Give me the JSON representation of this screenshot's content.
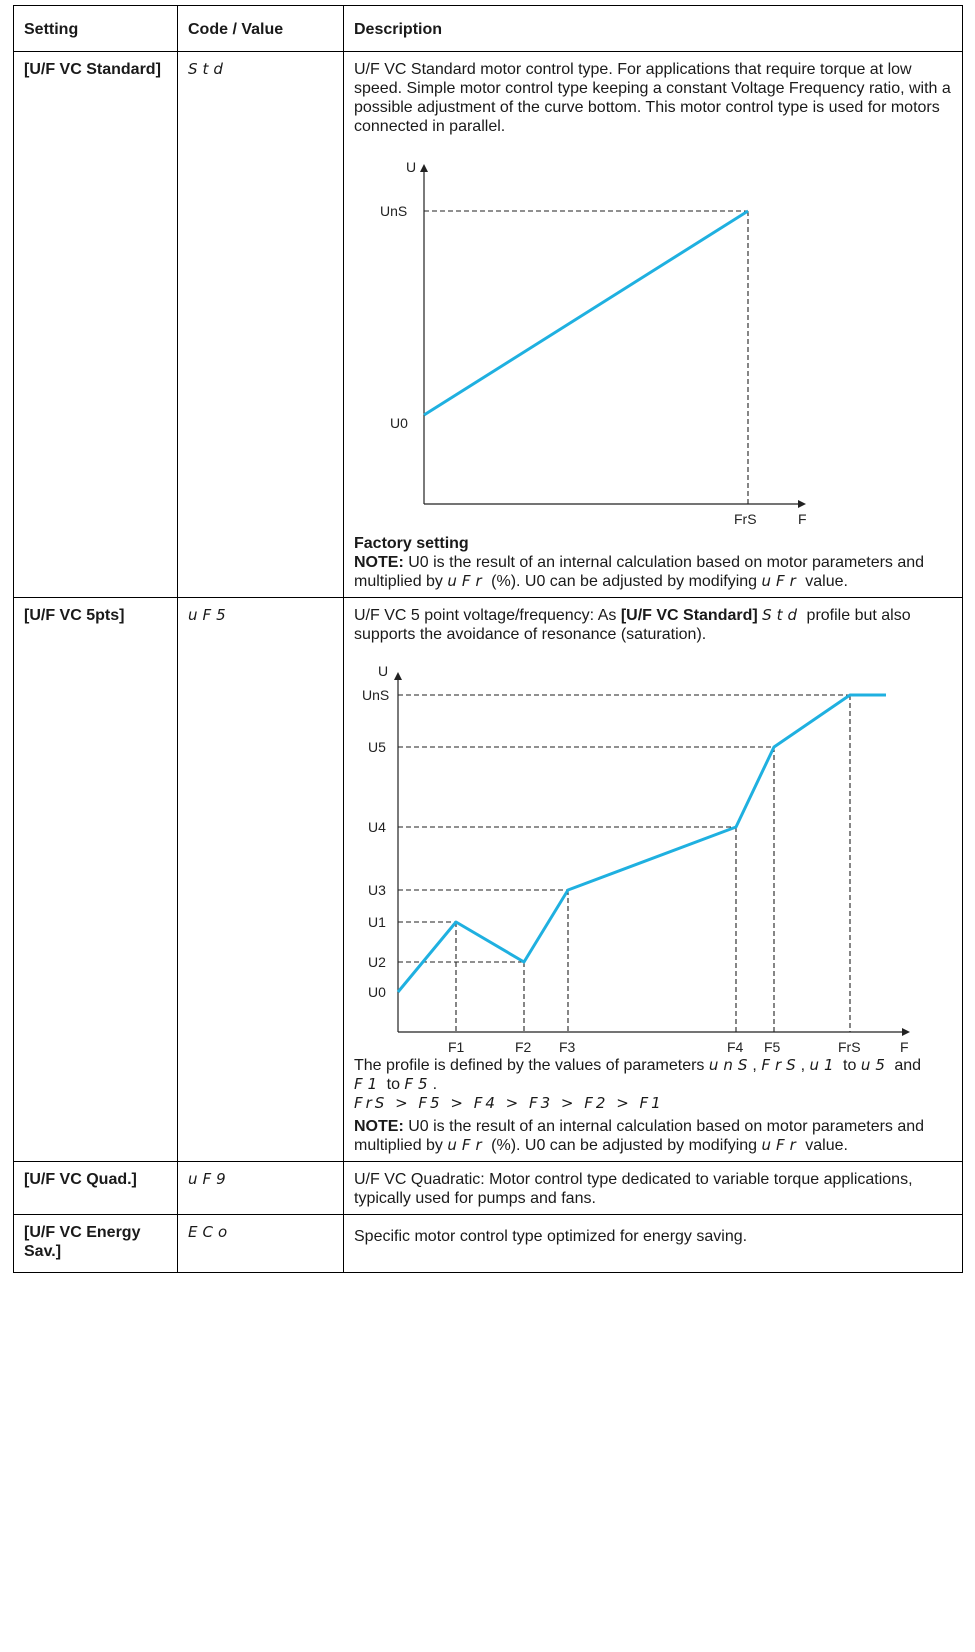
{
  "headers": {
    "setting": "Setting",
    "code": "Code / Value",
    "description": "Description"
  },
  "rows": [
    {
      "setting": "[U/F VC Standard]",
      "code": "Std",
      "description": "U/F VC Standard motor control type. For applications that require torque at low speed. Simple motor control type keeping a constant Voltage Frequency ratio, with a possible adjustment of the curve bottom. This motor control type is used for motors connected in parallel.",
      "factory_setting": "Factory setting",
      "note_label": "NOTE:",
      "note_part1": " U0 is the result of an internal calculation based on motor parameters and multiplied by ",
      "note_code1": "uFr",
      "note_part2": " (%). U0 can be adjusted by modifying ",
      "note_code2": "uFr",
      "note_part3": " value."
    },
    {
      "setting": "[U/F VC 5pts]",
      "code": "uF5",
      "desc_part1": "U/F VC 5 point voltage/frequency: As ",
      "desc_ref": "[U/F VC Standard]",
      "desc_code": "Std",
      "desc_part2": " profile but also supports the avoidance of resonance (saturation).",
      "profile_part1": "The profile is defined by the values of parameters ",
      "profile_code1": "unS",
      "profile_sep1": ",",
      "profile_code2": "FrS",
      "profile_sep2": ", ",
      "profile_code3": "u1",
      "profile_to1": " to ",
      "profile_code4": "u5",
      "profile_and": " and ",
      "profile_code5": "F1",
      "profile_to2": " to ",
      "profile_code6": "F5",
      "profile_end": ".",
      "inequality": "FrS > F5 > F4 > F3 > F2 > F1",
      "note_label": "NOTE:",
      "note_part1": " U0 is the result of an internal calculation based on motor parameters and multiplied by ",
      "note_code1": "uFr",
      "note_part2": " (%). U0 can be adjusted by modifying ",
      "note_code2": "uFr",
      "note_part3": " value."
    },
    {
      "setting": "[U/F VC Quad.]",
      "code": "uF9",
      "description": "U/F VC Quadratic: Motor control type dedicated to variable torque applications, typically used for pumps and fans."
    },
    {
      "setting": "[U/F VC Energy Sav.]",
      "code": "ECo",
      "description": "Specific motor control type optimized for energy saving."
    }
  ],
  "chart_data": [
    {
      "type": "line",
      "xlabel": "F",
      "ylabel": "U",
      "x_ticks": [
        "FrS"
      ],
      "y_ticks": [
        "U0",
        "UnS"
      ],
      "series": [
        {
          "points": [
            [
              "0",
              "U0"
            ],
            [
              "FrS",
              "UnS"
            ]
          ]
        }
      ],
      "line_color": "#1fb0e0"
    },
    {
      "type": "line",
      "xlabel": "F",
      "ylabel": "U",
      "x_ticks": [
        "F1",
        "F2",
        "F3",
        "F4",
        "F5",
        "FrS"
      ],
      "y_ticks": [
        "UnS",
        "U5",
        "U4",
        "U3",
        "U1",
        "U2",
        "U0"
      ],
      "series": [
        {
          "points": [
            [
              "0",
              "U0"
            ],
            [
              "F1",
              "U1"
            ],
            [
              "F2",
              "U2"
            ],
            [
              "F3",
              "U3"
            ],
            [
              "F4",
              "U4"
            ],
            [
              "F5",
              "U5"
            ],
            [
              "FrS",
              "UnS"
            ]
          ]
        }
      ],
      "line_color": "#1fb0e0"
    }
  ]
}
